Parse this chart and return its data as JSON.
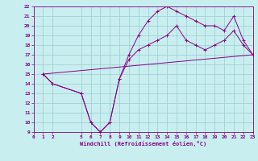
{
  "xlabel": "Windchill (Refroidissement éolien,°C)",
  "bg_color": "#c8eef0",
  "line_color": "#880088",
  "grid_color": "#99cccc",
  "xmin": 0,
  "xmax": 23,
  "ymin": 9,
  "ymax": 22,
  "xticks": [
    0,
    1,
    2,
    5,
    6,
    7,
    8,
    9,
    10,
    11,
    12,
    13,
    14,
    15,
    16,
    17,
    18,
    19,
    20,
    21,
    22,
    23
  ],
  "yticks": [
    9,
    10,
    11,
    12,
    13,
    14,
    15,
    16,
    17,
    18,
    19,
    20,
    21,
    22
  ],
  "line1_x": [
    1,
    2,
    5,
    6,
    7,
    8,
    9,
    10,
    11,
    12,
    13,
    14,
    15,
    16,
    17,
    18,
    19,
    20,
    21,
    22,
    23
  ],
  "line1_y": [
    15,
    14,
    13,
    10,
    9,
    10,
    14.5,
    17,
    19,
    20.5,
    21.5,
    22,
    21.5,
    21,
    20.5,
    20,
    20,
    19.5,
    21,
    18.5,
    17
  ],
  "line2_x": [
    1,
    2,
    5,
    6,
    7,
    8,
    9,
    10,
    11,
    12,
    13,
    14,
    15,
    16,
    17,
    18,
    19,
    20,
    21,
    22,
    23
  ],
  "line2_y": [
    15,
    14,
    13,
    10,
    9,
    10,
    14.5,
    16.5,
    17.5,
    18,
    18.5,
    19,
    20,
    18.5,
    18,
    17.5,
    18,
    18.5,
    19.5,
    18,
    17
  ],
  "line3_x": [
    1,
    23
  ],
  "line3_y": [
    15,
    17
  ]
}
